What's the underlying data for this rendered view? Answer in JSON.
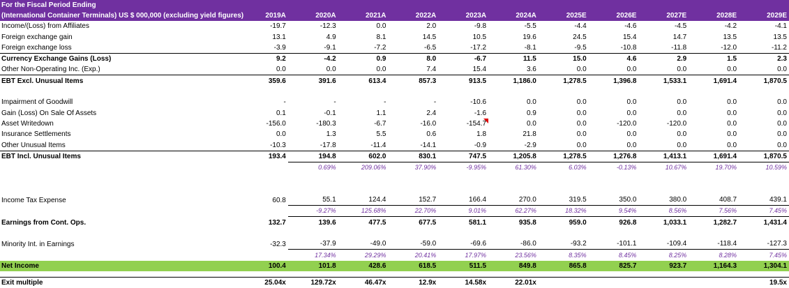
{
  "header": {
    "title_line1": "For the Fiscal Period Ending",
    "title_line2": "(International Container Terminals) US $ 000,000 (excluding yield figures)",
    "years": [
      "2019A",
      "2020A",
      "2021A",
      "2022A",
      "2023A",
      "2024A",
      "2025E",
      "2026E",
      "2027E",
      "2028E",
      "2029E"
    ]
  },
  "rows": {
    "affiliates": {
      "label": "Income/(Loss) from Affiliates",
      "values": [
        "-19.7",
        "-12.3",
        "0.0",
        "2.0",
        "-9.8",
        "-5.5",
        "-4.4",
        "-4.6",
        "-4.5",
        "-4.2",
        "-4.1"
      ]
    },
    "fx_gain": {
      "label": "Foreign exchange gain",
      "values": [
        "13.1",
        "4.9",
        "8.1",
        "14.5",
        "10.5",
        "19.6",
        "24.5",
        "15.4",
        "14.7",
        "13.5",
        "13.5"
      ]
    },
    "fx_loss": {
      "label": "Foreign exchange loss",
      "values": [
        "-3.9",
        "-9.1",
        "-7.2",
        "-6.5",
        "-17.2",
        "-8.1",
        "-9.5",
        "-10.8",
        "-11.8",
        "-12.0",
        "-11.2"
      ]
    },
    "currency": {
      "label": "Currency Exchange Gains (Loss)",
      "values": [
        "9.2",
        "-4.2",
        "0.9",
        "8.0",
        "-6.7",
        "11.5",
        "15.0",
        "4.6",
        "2.9",
        "1.5",
        "2.3"
      ]
    },
    "other_nonop": {
      "label": "Other Non-Operating Inc. (Exp.)",
      "values": [
        "0.0",
        "0.0",
        "0.0",
        "7.4",
        "15.4",
        "3.6",
        "0.0",
        "0.0",
        "0.0",
        "0.0",
        "0.0"
      ]
    },
    "ebt_excl": {
      "label": "EBT Excl. Unusual Items",
      "values": [
        "359.6",
        "391.6",
        "613.4",
        "857.3",
        "913.5",
        "1,186.0",
        "1,278.5",
        "1,396.8",
        "1,533.1",
        "1,691.4",
        "1,870.5"
      ]
    },
    "impairment": {
      "label": "Impairment of Goodwill",
      "values": [
        "-",
        "-",
        "-",
        "-",
        "-10.6",
        "0.0",
        "0.0",
        "0.0",
        "0.0",
        "0.0",
        "0.0"
      ]
    },
    "gain_sale": {
      "label": "Gain (Loss) On Sale Of Assets",
      "values": [
        "0.1",
        "-0.1",
        "1.1",
        "2.4",
        "-1.6",
        "0.9",
        "0.0",
        "0.0",
        "0.0",
        "0.0",
        "0.0"
      ]
    },
    "writedown": {
      "label": "Asset Writedown",
      "values": [
        "-156.0",
        "-180.3",
        "-6.7",
        "-16.0",
        "-154.7",
        "0.0",
        "0.0",
        "-120.0",
        "-120.0",
        "0.0",
        "0.0"
      ]
    },
    "insurance": {
      "label": "Insurance Settlements",
      "values": [
        "0.0",
        "1.3",
        "5.5",
        "0.6",
        "1.8",
        "21.8",
        "0.0",
        "0.0",
        "0.0",
        "0.0",
        "0.0"
      ]
    },
    "other_unusual": {
      "label": "Other Unusual Items",
      "values": [
        "-10.3",
        "-17.8",
        "-11.4",
        "-14.1",
        "-0.9",
        "-2.9",
        "0.0",
        "0.0",
        "0.0",
        "0.0",
        "0.0"
      ]
    },
    "ebt_incl": {
      "label": "EBT Incl. Unusual Items",
      "values": [
        "193.4",
        "194.8",
        "602.0",
        "830.1",
        "747.5",
        "1,205.8",
        "1,278.5",
        "1,276.8",
        "1,413.1",
        "1,691.4",
        "1,870.5"
      ]
    },
    "ebt_incl_growth": {
      "values": [
        "",
        "0.69%",
        "209.06%",
        "37.90%",
        "-9.95%",
        "61.30%",
        "6.03%",
        "-0.13%",
        "10.67%",
        "19.70%",
        "10.59%"
      ]
    },
    "tax": {
      "label": "Income Tax Expense",
      "values": [
        "60.8",
        "55.1",
        "124.4",
        "152.7",
        "166.4",
        "270.0",
        "319.5",
        "350.0",
        "380.0",
        "408.7",
        "439.1"
      ]
    },
    "tax_growth": {
      "values": [
        "",
        "-9.27%",
        "125.68%",
        "22.70%",
        "9.01%",
        "62.27%",
        "18.32%",
        "9.54%",
        "8.56%",
        "7.56%",
        "7.45%"
      ]
    },
    "cont_ops": {
      "label": "Earnings from Cont. Ops.",
      "values": [
        "132.7",
        "139.6",
        "477.5",
        "677.5",
        "581.1",
        "935.8",
        "959.0",
        "926.8",
        "1,033.1",
        "1,282.7",
        "1,431.4"
      ]
    },
    "minority": {
      "label": "Minority Int. in Earnings",
      "values": [
        "-32.3",
        "-37.9",
        "-49.0",
        "-59.0",
        "-69.6",
        "-86.0",
        "-93.2",
        "-101.1",
        "-109.4",
        "-118.4",
        "-127.3"
      ]
    },
    "minority_growth": {
      "values": [
        "",
        "17.34%",
        "29.29%",
        "20.41%",
        "17.97%",
        "23.56%",
        "8.35%",
        "8.45%",
        "8.25%",
        "8.28%",
        "7.45%"
      ]
    },
    "net_income": {
      "label": "Net Income",
      "values": [
        "100.4",
        "101.8",
        "428.6",
        "618.5",
        "511.5",
        "849.8",
        "865.8",
        "825.7",
        "923.7",
        "1,164.3",
        "1,304.1"
      ]
    },
    "exit": {
      "label": "Exit multiple",
      "values": [
        "25.04x",
        "129.72x",
        "46.47x",
        "12.9x",
        "14.58x",
        "22.01x",
        "",
        "",
        "",
        "",
        "19.5x"
      ]
    }
  },
  "colors": {
    "header_bg": "#7030a0",
    "net_income_bg": "#92d050",
    "growth_text": "#7030a0",
    "comment_flag": "#e00000"
  }
}
